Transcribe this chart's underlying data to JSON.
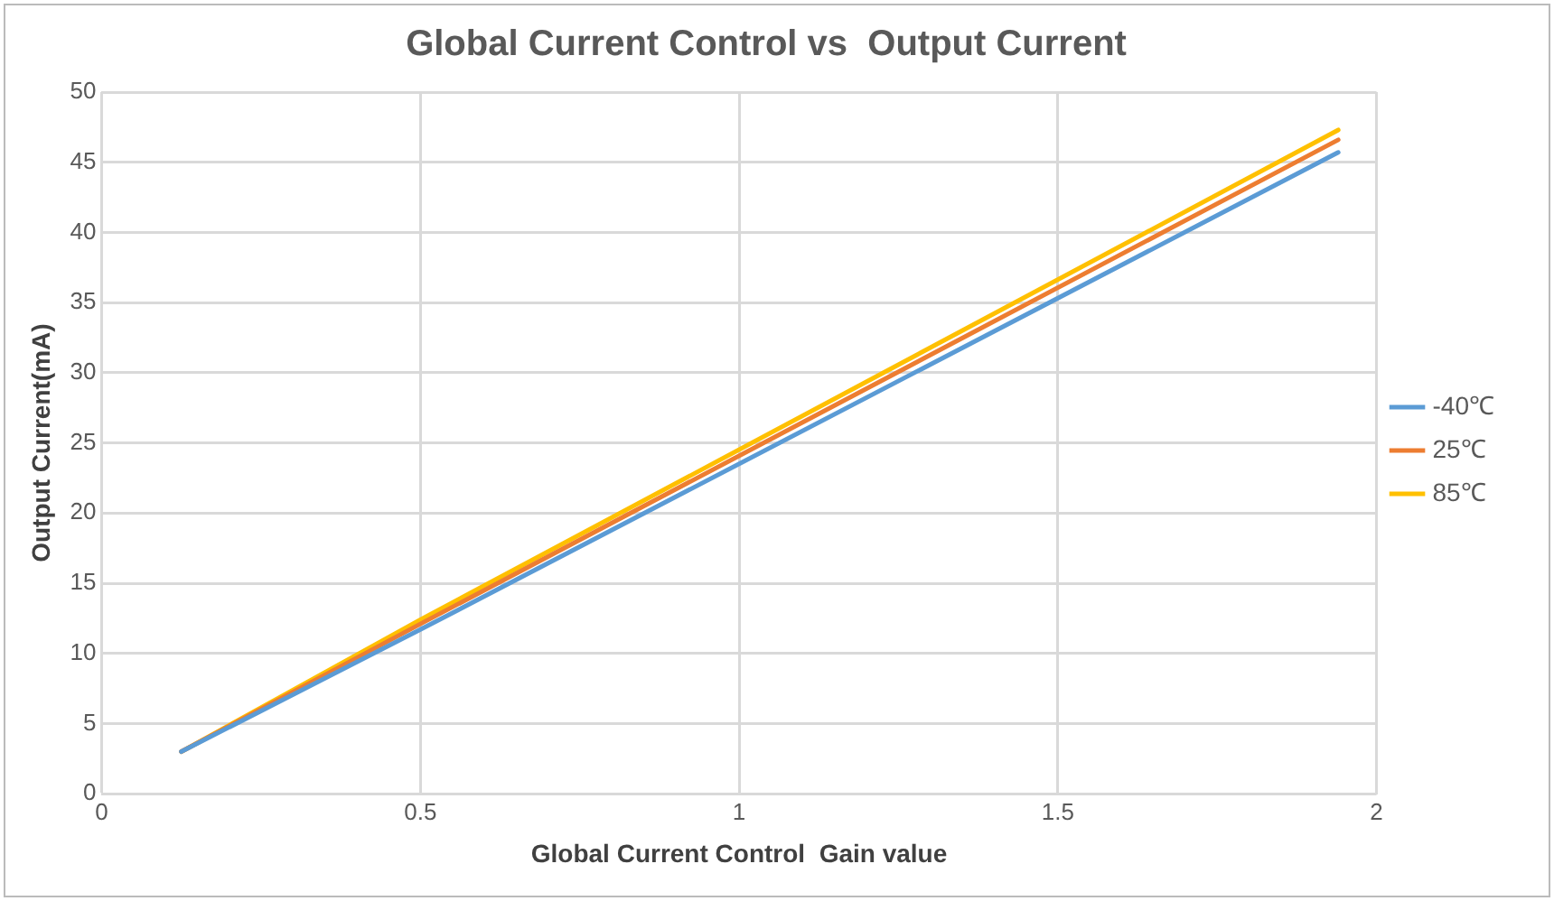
{
  "chart_data": {
    "type": "line",
    "title": "Global Current Control vs  Output Current",
    "xlabel": "Global Current Control  Gain value",
    "ylabel": "Output Current(mA)",
    "x": [
      0.125,
      0.5,
      1.94
    ],
    "series": [
      {
        "name": "-40℃",
        "color": "#5b9bd5",
        "values": [
          3.0,
          11.7,
          45.7
        ]
      },
      {
        "name": "25℃",
        "color": "#ed7d31",
        "values": [
          3.0,
          12.1,
          46.6
        ]
      },
      {
        "name": "85℃",
        "color": "#ffc000",
        "values": [
          3.0,
          12.4,
          47.3
        ]
      }
    ],
    "xlim": [
      0,
      2
    ],
    "xticks": [
      0,
      0.5,
      1,
      1.5,
      2
    ],
    "ylim": [
      0,
      50
    ],
    "yticks": [
      0,
      5,
      10,
      15,
      20,
      25,
      30,
      35,
      40,
      45,
      50
    ],
    "grid": true,
    "legend": "right",
    "marker": "none",
    "line_style": "solid"
  }
}
